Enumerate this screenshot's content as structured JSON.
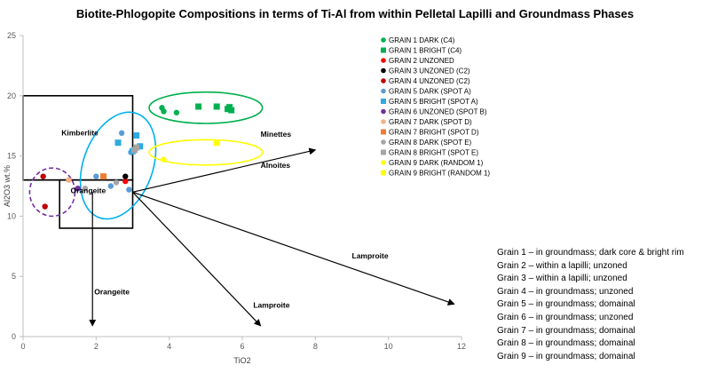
{
  "chart_data": {
    "type": "scatter",
    "title": "Biotite-Phlogopite Compositions in terms of Ti-Al from within Pelletal Lapilli and Groundmass Phases",
    "xlabel": "TiO2",
    "ylabel": "Al2O3 wt.%",
    "xlim": [
      0,
      12
    ],
    "ylim": [
      0,
      25
    ],
    "xticks": [
      0,
      2,
      4,
      6,
      8,
      10,
      12
    ],
    "yticks": [
      0,
      5,
      10,
      15,
      20,
      25
    ],
    "grid": false,
    "legend_position": "right",
    "series": [
      {
        "name": "GRAIN 1 DARK (C4)",
        "color": "#00b050",
        "marker": "circle",
        "points": [
          [
            3.8,
            19.0
          ],
          [
            3.85,
            18.7
          ],
          [
            4.2,
            18.6
          ]
        ]
      },
      {
        "name": "GRAIN 1 BRIGHT (C4)",
        "color": "#00b050",
        "marker": "square",
        "points": [
          [
            4.8,
            19.1
          ],
          [
            5.3,
            19.1
          ],
          [
            5.6,
            18.9
          ],
          [
            5.65,
            19.05
          ],
          [
            5.7,
            18.8
          ]
        ]
      },
      {
        "name": "GRAIN 2 UNZONED",
        "color": "#ff0000",
        "marker": "circle",
        "points": [
          [
            2.8,
            12.9
          ]
        ]
      },
      {
        "name": "GRAIN 3 UNZONED (C2)",
        "color": "#000000",
        "marker": "circle",
        "points": [
          [
            2.8,
            13.3
          ]
        ]
      },
      {
        "name": "GRAIN 4 UNZONED (C2)",
        "color": "#c00000",
        "marker": "circle",
        "points": [
          [
            0.55,
            13.3
          ],
          [
            0.6,
            10.8
          ]
        ]
      },
      {
        "name": "GRAIN 5 DARK (SPOT A)",
        "color": "#5b9bd5",
        "marker": "circle",
        "points": [
          [
            2.7,
            16.9
          ],
          [
            2.95,
            15.3
          ],
          [
            2.9,
            12.2
          ],
          [
            2.4,
            12.5
          ],
          [
            2.0,
            13.3
          ]
        ]
      },
      {
        "name": "GRAIN 5 BRIGHT (SPOT A)",
        "color": "#2eaae1",
        "marker": "square",
        "points": [
          [
            2.6,
            16.1
          ],
          [
            3.1,
            16.7
          ],
          [
            3.2,
            15.8
          ],
          [
            3.0,
            15.4
          ]
        ]
      },
      {
        "name": "GRAIN 6 UNZONED (SPOT B)",
        "color": "#7030a0",
        "marker": "circle",
        "points": [
          [
            1.5,
            12.3
          ]
        ]
      },
      {
        "name": "GRAIN 7 DARK (SPOT D)",
        "color": "#f4b183",
        "marker": "circle",
        "points": [
          [
            1.25,
            13.0
          ]
        ]
      },
      {
        "name": "GRAIN 7 BRIGHT (SPOT D)",
        "color": "#ed7d31",
        "marker": "square",
        "points": [
          [
            2.2,
            13.3
          ]
        ]
      },
      {
        "name": "GRAIN 8 DARK (SPOT E)",
        "color": "#a5a5a5",
        "marker": "circle",
        "points": [
          [
            1.7,
            12.3
          ],
          [
            2.55,
            12.8
          ]
        ]
      },
      {
        "name": "GRAIN 8 BRIGHT (SPOT E)",
        "color": "#a5a5a5",
        "marker": "square",
        "points": [
          [
            3.1,
            15.7
          ],
          [
            3.05,
            15.5
          ]
        ]
      },
      {
        "name": "GRAIN 9 DARK (RANDOM 1)",
        "color": "#ffff00",
        "marker": "circle",
        "points": [
          [
            3.85,
            14.7
          ]
        ]
      },
      {
        "name": "GRAIN 9 BRIGHT (RANDOM 1)",
        "color": "#ffff00",
        "marker": "square",
        "points": [
          [
            5.3,
            16.1
          ]
        ]
      }
    ],
    "field_boxes": [
      {
        "name": "Kimberlite",
        "x": [
          0,
          3
        ],
        "y": [
          13,
          20
        ]
      },
      {
        "name": "Orangeite",
        "x": [
          1,
          3
        ],
        "y": [
          9,
          13
        ]
      }
    ],
    "field_baseline": {
      "x": [
        0,
        3
      ],
      "y": 13
    },
    "ellipses": [
      {
        "color": "#00b050",
        "dashed": false,
        "cx": 5.0,
        "cy": 19.0,
        "rx": 1.55,
        "ry": 1.3
      },
      {
        "color": "#00b0f0",
        "dashed": false,
        "cx": 2.6,
        "cy": 14.2,
        "rx": 0.95,
        "ry": 4.6,
        "rotate": 20
      },
      {
        "color": "#ffff00",
        "dashed": false,
        "cx": 5.0,
        "cy": 15.3,
        "rx": 1.55,
        "ry": 1.05
      },
      {
        "color": "#7030a0",
        "dashed": true,
        "cx": 0.8,
        "cy": 12.0,
        "rx": 0.62,
        "ry": 2.0
      }
    ],
    "trend_arrows": [
      {
        "from": [
          3,
          12
        ],
        "to": [
          8,
          15.5
        ]
      },
      {
        "from": [
          3,
          12
        ],
        "to": [
          11.8,
          2.7
        ]
      },
      {
        "from": [
          3,
          12
        ],
        "to": [
          6.5,
          0.9
        ]
      },
      {
        "from": [
          1.9,
          12
        ],
        "to": [
          1.9,
          0.9
        ]
      }
    ],
    "annotations": [
      {
        "text": "Kimberlite",
        "x": 1.05,
        "y": 16.7
      },
      {
        "text": "Orangeite",
        "x": 1.3,
        "y": 11.9
      },
      {
        "text": "Minettes",
        "x": 6.5,
        "y": 16.6
      },
      {
        "text": "Alnoites",
        "x": 6.5,
        "y": 14.0
      },
      {
        "text": "Lamproite",
        "x": 9.0,
        "y": 6.5
      },
      {
        "text": "Lamproite",
        "x": 6.3,
        "y": 2.4
      },
      {
        "text": "Orangeite",
        "x": 1.95,
        "y": 3.5
      }
    ]
  },
  "notes": [
    "Grain 1 – in groundmass; dark core & bright rim",
    "Grain 2 – within a lapilli; unzoned",
    "Grain 3 – within a lapilli; unzoned",
    "Grain 4 – in groundmass; unzoned",
    "Grain 5 – in groundmass; domainal",
    "Grain 6 – in groundmass; unzoned",
    "Grain 7 – in groundmass; domainal",
    "Grain 8 – in groundmass; domainal",
    "Grain 9 – in groundmass; domainal"
  ]
}
